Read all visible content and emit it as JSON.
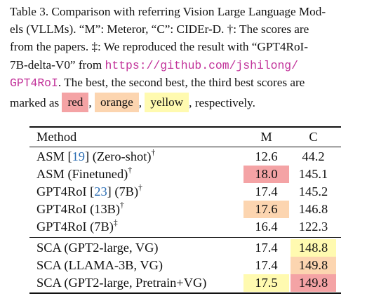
{
  "caption": {
    "line1": "Table 3. Comparison with referring Vision Large Language Mod-",
    "line2": "els (VLLMs).  “M”: Meteror, “C”: CIDEr-D.  †:  The scores are",
    "line3": "from the papers.   ‡:  We reproduced the result with “GPT4RoI-",
    "line4a": "7B-delta-V0”  from ",
    "link_part1": "https://github.com/jshilong/",
    "link_part2": "GPT4RoI",
    "line5b": ".  The best, the second best, the third best scores are",
    "line6a": "marked as ",
    "swatch_red": "red",
    "sep1": ",",
    "swatch_orange": "orange",
    "sep2": ",",
    "swatch_yellow": "yellow",
    "line6b": ", respectively."
  },
  "table": {
    "header": {
      "method": "Method",
      "m": "M",
      "c": "C"
    },
    "rows": [
      {
        "method_pre": "ASM [",
        "cite": "19",
        "method_post": "] (Zero-shot)",
        "mark": "†",
        "m": "12.6",
        "c": "44.2",
        "m_rank": "",
        "c_rank": ""
      },
      {
        "method_pre": "ASM (Finetuned)",
        "cite": "",
        "method_post": "",
        "mark": "†",
        "m": "18.0",
        "c": "145.1",
        "m_rank": "red",
        "c_rank": ""
      },
      {
        "method_pre": "GPT4RoI [",
        "cite": "23",
        "method_post": "] (7B)",
        "mark": "†",
        "m": "17.4",
        "c": "145.2",
        "m_rank": "",
        "c_rank": ""
      },
      {
        "method_pre": "GPT4RoI (13B)",
        "cite": "",
        "method_post": "",
        "mark": "†",
        "m": "17.6",
        "c": "146.8",
        "m_rank": "orange",
        "c_rank": ""
      },
      {
        "method_pre": "GPT4RoI (7B)",
        "cite": "",
        "method_post": "",
        "mark": "‡",
        "m": "16.4",
        "c": "122.3",
        "m_rank": "",
        "c_rank": ""
      },
      {
        "method_pre": "SCA (GPT2-large, VG)",
        "cite": "",
        "method_post": "",
        "mark": "",
        "m": "17.4",
        "c": "148.8",
        "m_rank": "",
        "c_rank": "yellow"
      },
      {
        "method_pre": "SCA (LLAMA-3B, VG)",
        "cite": "",
        "method_post": "",
        "mark": "",
        "m": "17.4",
        "c": "149.8",
        "m_rank": "",
        "c_rank": "orange"
      },
      {
        "method_pre": "SCA (GPT2-large, Pretrain+VG)",
        "cite": "",
        "method_post": "",
        "mark": "",
        "m": "17.5",
        "c": "149.8",
        "m_rank": "yellow",
        "c_rank": "red"
      }
    ]
  },
  "colors": {
    "red": "#f4a3a5",
    "orange": "#fcd5b0",
    "yellow": "#fffab0",
    "link": "#c2339a",
    "cite": "#2b6db3"
  }
}
